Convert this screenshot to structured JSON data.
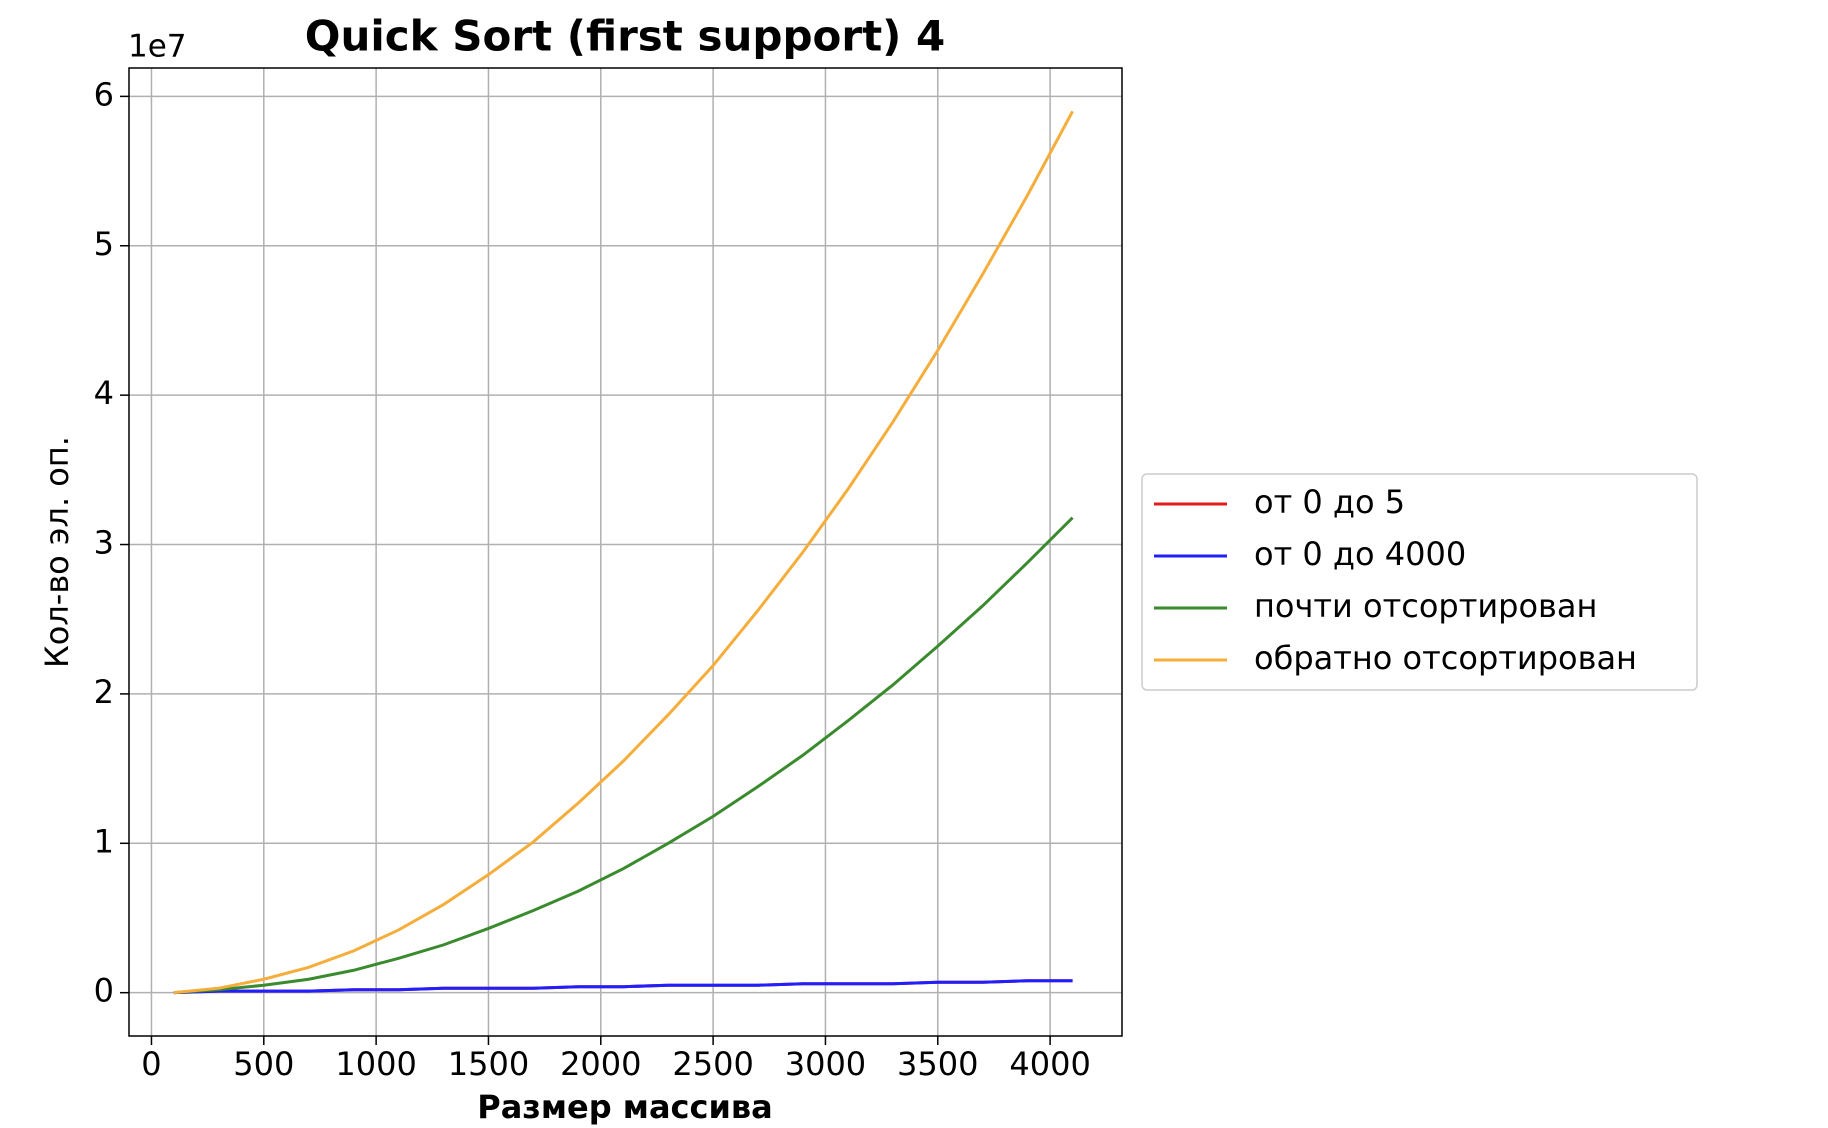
{
  "chart_data": {
    "type": "line",
    "title": "Quick Sort (first support) 4",
    "x_label": "Размер массива",
    "y_label": "Кол-во эл. оп.",
    "y_offset_label": "1e7",
    "x": [
      100,
      300,
      500,
      700,
      900,
      1100,
      1300,
      1500,
      1700,
      1900,
      2100,
      2300,
      2500,
      2700,
      2900,
      3100,
      3300,
      3500,
      3700,
      3900,
      4100
    ],
    "series": [
      {
        "name": "от 0 до 5",
        "color": "#e41a1c",
        "values": [
          0.0,
          0.01,
          0.01,
          0.01,
          0.02,
          0.02,
          0.03,
          0.03,
          0.03,
          0.04,
          0.04,
          0.05,
          0.05,
          0.05,
          0.06,
          0.06,
          0.06,
          0.07,
          0.07,
          0.08,
          0.08
        ]
      },
      {
        "name": "от 0 до 4000",
        "color": "#1f1fff",
        "values": [
          0.0,
          0.01,
          0.01,
          0.01,
          0.02,
          0.02,
          0.03,
          0.03,
          0.03,
          0.04,
          0.04,
          0.05,
          0.05,
          0.05,
          0.06,
          0.06,
          0.06,
          0.07,
          0.07,
          0.08,
          0.08
        ]
      },
      {
        "name": "почти отсортирован",
        "color": "#3a8a2e",
        "values": [
          0.0,
          0.02,
          0.05,
          0.09,
          0.15,
          0.23,
          0.32,
          0.43,
          0.55,
          0.68,
          0.83,
          1.0,
          1.18,
          1.38,
          1.59,
          1.82,
          2.06,
          2.32,
          2.59,
          2.88,
          3.18
        ]
      },
      {
        "name": "обратно отсортирован",
        "color": "#f5ad3b",
        "values": [
          0.0,
          0.03,
          0.09,
          0.17,
          0.28,
          0.42,
          0.59,
          0.79,
          1.01,
          1.27,
          1.55,
          1.86,
          2.19,
          2.56,
          2.95,
          3.37,
          3.82,
          4.3,
          4.81,
          5.34,
          5.9
        ]
      }
    ],
    "xlim": [
      -100,
      4320
    ],
    "ylim": [
      -0.29,
      6.19
    ],
    "xticks": [
      0,
      500,
      1000,
      1500,
      2000,
      2500,
      3000,
      3500,
      4000
    ],
    "yticks": [
      0,
      1,
      2,
      3,
      4,
      5,
      6
    ],
    "grid": true,
    "legend": "outside-right"
  }
}
